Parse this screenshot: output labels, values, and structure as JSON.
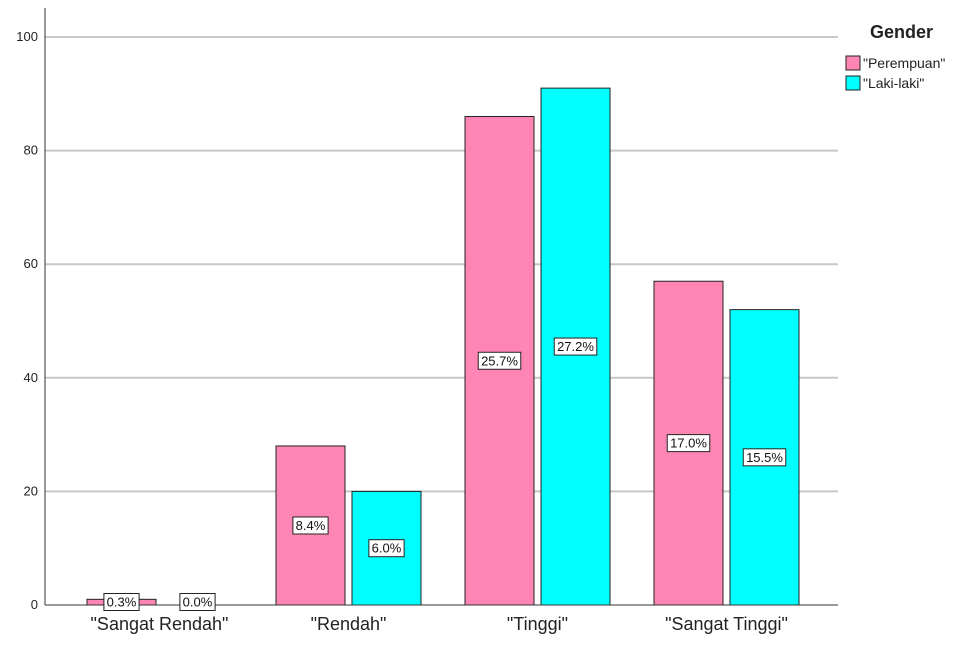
{
  "chart_data": {
    "type": "bar",
    "categories": [
      "\"Sangat Rendah\"",
      "\"Rendah\"",
      "\"Tinggi\"",
      "\"Sangat Tinggi\""
    ],
    "series": [
      {
        "name": "\"Perempuan\"",
        "color": "#FF85B4",
        "values": [
          1,
          28,
          86,
          57
        ],
        "labels": [
          "0.3%",
          "8.4%",
          "25.7%",
          "17.0%"
        ]
      },
      {
        "name": "\"Laki-laki\"",
        "color": "#00FFFF",
        "values": [
          0,
          20,
          91,
          52
        ],
        "labels": [
          "0.0%",
          "6.0%",
          "27.2%",
          "15.5%"
        ]
      }
    ],
    "yticks": [
      0,
      20,
      40,
      60,
      80,
      100
    ],
    "ylim": [
      0,
      105
    ],
    "grid": true,
    "legend": {
      "title": "Gender",
      "placement": "top-right"
    }
  }
}
